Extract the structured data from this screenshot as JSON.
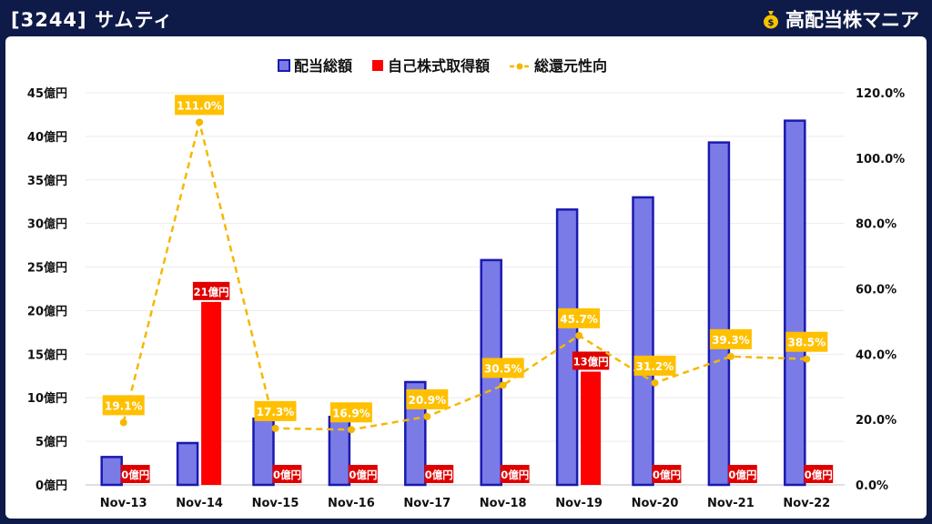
{
  "header": {
    "title": "[3244] サムティ",
    "brand": "高配当株マニア",
    "brand_icon": "money-bag-icon"
  },
  "colors": {
    "background": "#0e1a47",
    "dividend_fill": "#7b7be8",
    "dividend_stroke": "#1a1ab0",
    "buyback": "#ff0000",
    "ratio_line": "#f5b800",
    "ratio_label_bg": "#ffc000",
    "buyback_label_bg": "#e00000"
  },
  "chart_data": {
    "type": "bar",
    "categories": [
      "Nov-13",
      "Nov-14",
      "Nov-15",
      "Nov-16",
      "Nov-17",
      "Nov-18",
      "Nov-19",
      "Nov-20",
      "Nov-21",
      "Nov-22"
    ],
    "series": [
      {
        "name": "配当総額",
        "type": "bar",
        "axis": "left",
        "values": [
          3.2,
          4.8,
          7.6,
          7.8,
          11.8,
          25.8,
          31.6,
          33.0,
          39.3,
          41.8
        ]
      },
      {
        "name": "自己株式取得額",
        "type": "bar",
        "axis": "left",
        "values": [
          0,
          21,
          0,
          0,
          0,
          0,
          13,
          0,
          0,
          0
        ],
        "labels": [
          "0億円",
          "21億円",
          "0億円",
          "0億円",
          "0億円",
          "0億円",
          "13億円",
          "0億円",
          "0億円",
          "0億円"
        ]
      },
      {
        "name": "総還元性向",
        "type": "line",
        "axis": "right",
        "values": [
          19.1,
          111.0,
          17.3,
          16.9,
          20.9,
          30.5,
          45.7,
          31.2,
          39.3,
          38.5
        ],
        "labels": [
          "19.1%",
          "111.0%",
          "17.3%",
          "16.9%",
          "20.9%",
          "30.5%",
          "45.7%",
          "31.2%",
          "39.3%",
          "38.5%"
        ]
      }
    ],
    "y_left": {
      "min": 0,
      "max": 45,
      "ticks": [
        "0億円",
        "5億円",
        "10億円",
        "15億円",
        "20億円",
        "25億円",
        "30億円",
        "35億円",
        "40億円",
        "45億円"
      ]
    },
    "y_right": {
      "min": 0,
      "max": 120,
      "ticks": [
        "0.0%",
        "20.0%",
        "40.0%",
        "60.0%",
        "80.0%",
        "100.0%",
        "120.0%"
      ]
    },
    "legend_position": "top-center",
    "grid": true
  }
}
